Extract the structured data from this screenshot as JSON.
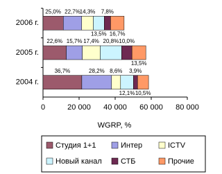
{
  "chart_data": {
    "type": "stacked-bar-horizontal",
    "x_label": "WGRP, %",
    "categories": [
      "2006 г.",
      "2005 г.",
      "2004 г."
    ],
    "xlim": [
      0,
      80000
    ],
    "xticks": [
      0,
      {
        "value": 20000,
        "label": "20 000"
      },
      {
        "value": 40000,
        "label": "40 000"
      },
      {
        "value": 60000,
        "label": "60 000"
      },
      {
        "value": 80000,
        "label": "80 000"
      }
    ],
    "series": [
      {
        "name": "Студия 1+1",
        "color": "#9c5a6c",
        "values": [
          11250,
          12900,
          21500
        ],
        "labels": [
          "25,0%",
          "22,6%",
          "36,7%"
        ]
      },
      {
        "name": "Интер",
        "color": "#9f9fe6",
        "values": [
          10200,
          8900,
          16500
        ],
        "labels": [
          "22,7%",
          "15,7%",
          "28,2%"
        ]
      },
      {
        "name": "ICTV",
        "color": "#ffffcc",
        "values": [
          6400,
          9900,
          5000
        ],
        "labels": [
          "14,3%",
          "17,4%",
          "8,6%"
        ]
      },
      {
        "name": "Новый канал",
        "color": "#ccf4ff",
        "values": [
          6100,
          11900,
          7100
        ],
        "labels": [
          "13,5%",
          "20,8%",
          "12,1%"
        ]
      },
      {
        "name": "СТБ",
        "color": "#6e2a52",
        "values": [
          3500,
          5700,
          2300
        ],
        "labels": [
          "7,8%",
          "10,0%",
          "3,9%"
        ]
      },
      {
        "name": "Прочие",
        "color": "#ff9966",
        "values": [
          7500,
          7700,
          6100
        ],
        "labels": [
          "16,7%",
          "13,5%",
          "10,5%"
        ]
      }
    ]
  }
}
